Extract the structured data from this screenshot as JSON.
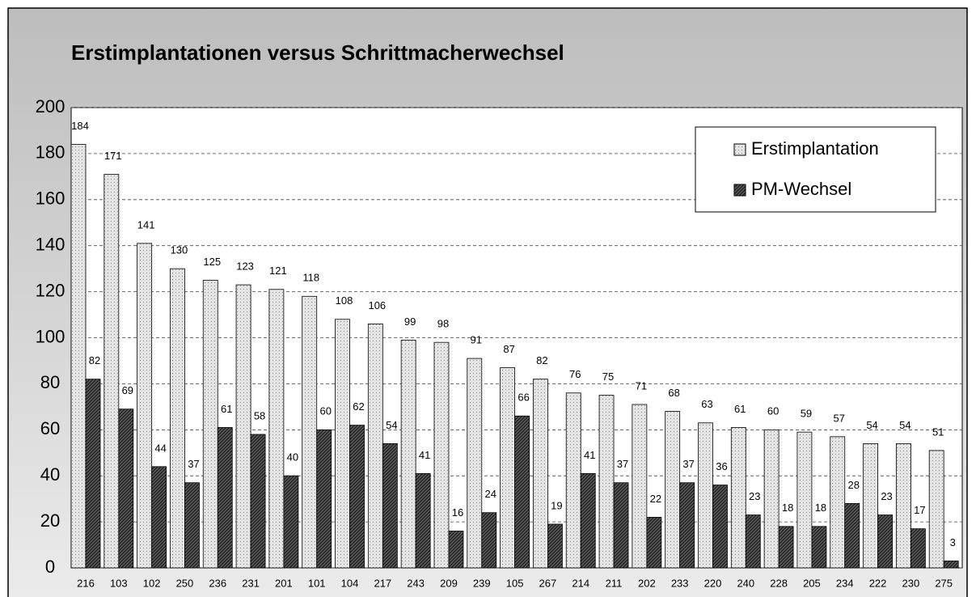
{
  "chart_data": {
    "type": "bar",
    "title": "Erstimplantationen versus Schrittmacherwechsel",
    "categories": [
      "216",
      "103",
      "102",
      "250",
      "236",
      "231",
      "201",
      "101",
      "104",
      "217",
      "243",
      "209",
      "239",
      "105",
      "267",
      "214",
      "211",
      "202",
      "233",
      "220",
      "240",
      "228",
      "205",
      "234",
      "222",
      "230",
      "275"
    ],
    "series": [
      {
        "name": "Erstimplantation",
        "color": "#e4e4e4",
        "values": [
          184,
          171,
          141,
          130,
          125,
          123,
          121,
          118,
          108,
          106,
          99,
          98,
          91,
          87,
          82,
          76,
          75,
          71,
          68,
          63,
          61,
          60,
          59,
          57,
          54,
          54,
          51
        ]
      },
      {
        "name": "PM-Wechsel",
        "color": "#5a5a5a",
        "values": [
          82,
          69,
          44,
          37,
          61,
          58,
          40,
          60,
          62,
          54,
          41,
          16,
          24,
          66,
          19,
          41,
          37,
          22,
          37,
          36,
          23,
          18,
          18,
          28,
          23,
          17,
          3
        ]
      }
    ],
    "ylim": [
      0,
      200
    ],
    "yticks": [
      0,
      20,
      40,
      60,
      80,
      100,
      120,
      140,
      160,
      180,
      200
    ],
    "grid": true,
    "legend": "top-right"
  }
}
